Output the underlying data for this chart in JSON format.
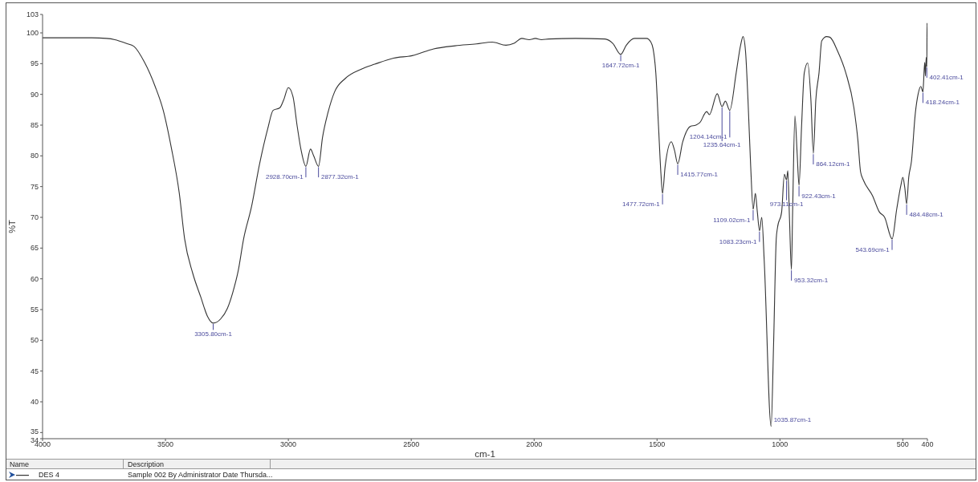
{
  "chart_data": {
    "type": "line",
    "xlabel": "cm-1",
    "ylabel": "%T",
    "legend_title": "Name",
    "legend": "bottom",
    "x": [
      4000,
      3900,
      3800,
      3740,
      3706,
      3660,
      3628,
      3585,
      3542,
      3509,
      3476,
      3444,
      3422,
      3389,
      3356,
      3329,
      3305.8,
      3275,
      3248,
      3226,
      3204,
      3182,
      3150,
      3117,
      3084,
      3062,
      3035,
      3019,
      3000,
      2981,
      2964,
      2948,
      2928.7,
      2910,
      2897,
      2877.3,
      2861,
      2839,
      2812,
      2768,
      2703,
      2649,
      2572,
      2496,
      2409,
      2322,
      2235,
      2170,
      2115,
      2082,
      2050,
      2020,
      1995,
      1970,
      1941,
      1832,
      1712,
      1680,
      1647.7,
      1625,
      1592,
      1543,
      1525,
      1516,
      1505,
      1494,
      1484,
      1477.7,
      1467,
      1442,
      1429,
      1415.8,
      1396,
      1364,
      1342,
      1326,
      1298,
      1287,
      1255,
      1235.6,
      1222,
      1204.1,
      1178,
      1160,
      1150,
      1140,
      1130,
      1119,
      1109,
      1100,
      1092,
      1083.2,
      1074,
      1064,
      1035.9,
      1026,
      1015,
      1010,
      993,
      982,
      973.1,
      968,
      961,
      953.3,
      948,
      939,
      930,
      922.4,
      912,
      901,
      887,
      874,
      864.1,
      854,
      841,
      830,
      810,
      797,
      765,
      732,
      699,
      683,
      672,
      661,
      623,
      596,
      574,
      543.7,
      525,
      508,
      500,
      492,
      484.5,
      476,
      465,
      449,
      438,
      427,
      418.2,
      416,
      411,
      408,
      405,
      402.4,
      401.5,
      400
    ],
    "series": [
      {
        "name": "DES 4",
        "color": "#333333",
        "values": [
          99.2,
          99.2,
          99.2,
          99.1,
          98.9,
          98.3,
          97.8,
          95.2,
          91.3,
          87.4,
          81.3,
          74.0,
          66.5,
          60.9,
          57.0,
          53.9,
          52.8,
          53.5,
          55.2,
          57.8,
          61.3,
          66.5,
          71.7,
          78.7,
          84.4,
          87.4,
          87.8,
          89.1,
          91.1,
          89.6,
          84.8,
          80.9,
          78.3,
          81.1,
          80.0,
          78.3,
          83.0,
          87.0,
          90.4,
          92.6,
          94.1,
          94.9,
          95.9,
          96.3,
          97.4,
          97.9,
          98.2,
          98.5,
          98.0,
          98.3,
          99.1,
          98.9,
          99.1,
          98.9,
          99.0,
          99.1,
          99.0,
          98.3,
          96.5,
          98.0,
          99.1,
          99.1,
          98.5,
          97.4,
          93.5,
          84.8,
          77.0,
          73.9,
          78.3,
          82.3,
          80.9,
          78.7,
          82.2,
          84.8,
          85.0,
          85.4,
          87.2,
          86.7,
          90.1,
          88.0,
          88.9,
          87.4,
          93.5,
          98.0,
          99.4,
          97.0,
          89.1,
          78.3,
          71.3,
          73.9,
          70.9,
          67.8,
          70.0,
          63.0,
          36.0,
          49.1,
          66.5,
          68.3,
          70.9,
          77.0,
          76.1,
          77.6,
          69.6,
          61.5,
          71.8,
          86.5,
          80.4,
          75.2,
          84.8,
          93.5,
          95.1,
          89.1,
          80.4,
          89.1,
          93.5,
          98.7,
          99.4,
          99.3,
          97.0,
          93.5,
          87.8,
          82.6,
          77.4,
          76.1,
          73.5,
          70.9,
          70.0,
          66.5,
          71.3,
          75.2,
          76.5,
          74.8,
          72.2,
          76.5,
          79.1,
          87.0,
          90.0,
          91.3,
          90.4,
          91.7,
          95.2,
          93.0,
          96.0,
          94.5,
          101.6,
          99.3
        ]
      }
    ],
    "xlim": [
      4000,
      400
    ],
    "xticks": [
      4000,
      3500,
      3000,
      2500,
      2000,
      1500,
      1000,
      500,
      400
    ],
    "ylim": [
      34,
      103
    ],
    "yticks": [
      34,
      35,
      40,
      45,
      50,
      55,
      60,
      65,
      70,
      75,
      80,
      85,
      90,
      95,
      100,
      103
    ],
    "annotations": [
      {
        "text": "3305.80cm-1",
        "x": 3305.8,
        "y": 52.8
      },
      {
        "text": "2877.32cm-1",
        "x": 2877.3,
        "y": 78.3
      },
      {
        "text": "2928.70cm-1",
        "x": 2928.7,
        "y": 78.3
      },
      {
        "text": "1647.72cm-1",
        "x": 1647.7,
        "y": 96.5
      },
      {
        "text": "1477.72cm-1",
        "x": 1477.7,
        "y": 73.9
      },
      {
        "text": "1415.77cm-1",
        "x": 1415.8,
        "y": 78.7
      },
      {
        "text": "1204.14cm-1",
        "x": 1204.1,
        "y": 87.4
      },
      {
        "text": "1235.64cm-1",
        "x": 1235.6,
        "y": 88.0
      },
      {
        "text": "1109.02cm-1",
        "x": 1109,
        "y": 71.3
      },
      {
        "text": "1083.23cm-1",
        "x": 1083.2,
        "y": 67.8
      },
      {
        "text": "1035.87cm-1",
        "x": 1035.9,
        "y": 36.0
      },
      {
        "text": "922.43cm-1",
        "x": 922.4,
        "y": 75.2
      },
      {
        "text": "973.11cm-1",
        "x": 973.1,
        "y": 76.1
      },
      {
        "text": "953.32cm-1",
        "x": 953.3,
        "y": 61.5
      },
      {
        "text": "864.12cm-1",
        "x": 864.1,
        "y": 80.4
      },
      {
        "text": "543.69cm-1",
        "x": 543.7,
        "y": 66.5
      },
      {
        "text": "484.48cm-1",
        "x": 484.5,
        "y": 72.2
      },
      {
        "text": "418.24cm-1",
        "x": 418.2,
        "y": 90.4
      },
      {
        "text": "402.41cm-1",
        "x": 402.4,
        "y": 94.5
      },
      "Description",
      "Sample 002 By Administrator Date Thursda..."
    ]
  }
}
